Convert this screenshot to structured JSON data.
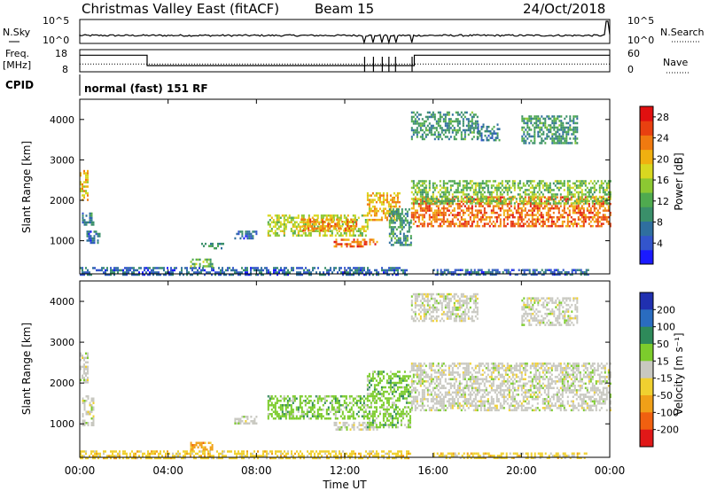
{
  "header": {
    "title": "Christmas Valley East (fitACF)",
    "beam": "Beam 15",
    "date": "24/Oct/2018"
  },
  "panels": {
    "nsky_label": "N.Sky",
    "nsearch_label": "N.Search",
    "freq_label_1": "Freq.",
    "freq_label_2": "[MHz]",
    "nave_label": "Nave",
    "cpid_label": "CPID",
    "cpid_text": "normal (fast) 151 RF",
    "nsky_ticks": [
      "10^5",
      "10^0"
    ],
    "nsearch_ticks": [
      "10^5",
      "10^0"
    ],
    "freq_ticks": [
      "18",
      "8"
    ],
    "nave_ticks": [
      "60",
      "0"
    ],
    "nsky_series_hint": "noise sky ~10^1.5, steps down at ~12:55, 13:20, 13:40, 14:20, 15:05; spike at 23:55",
    "freq_series": [
      {
        "t": 0.0,
        "freq": 15.5
      },
      {
        "t": 3.05,
        "freq": 15.5
      },
      {
        "t": 3.05,
        "freq": 10.8
      },
      {
        "t": 15.15,
        "freq": 10.8
      },
      {
        "t": 15.15,
        "freq": 15.5
      },
      {
        "t": 24.0,
        "freq": 15.5
      }
    ],
    "nave_level": 21
  },
  "chart_data": [
    {
      "type": "heatmap",
      "name": "power",
      "xlabel": "",
      "ylabel": "Slant Range [km]",
      "xlim": [
        0,
        24
      ],
      "ylim": [
        180,
        4500
      ],
      "yticks": [
        1000,
        2000,
        3000,
        4000
      ],
      "colorbar": {
        "label": "Power [dB]",
        "ticks": [
          "4",
          "8",
          "12",
          "16",
          "20",
          "24",
          "28"
        ],
        "range": [
          0,
          30
        ],
        "colors": [
          "#1a1aff",
          "#3355cc",
          "#2f6f9f",
          "#3a8f6a",
          "#4faa4f",
          "#8cc832",
          "#d8d820",
          "#f0b010",
          "#f07a10",
          "#e84010",
          "#e01010"
        ]
      },
      "regions": [
        {
          "t0": 0.0,
          "t1": 0.35,
          "r0": 2000,
          "r1": 2750,
          "level": 20
        },
        {
          "t0": 0.1,
          "t1": 0.6,
          "r0": 1400,
          "r1": 1700,
          "level": 8
        },
        {
          "t0": 0.3,
          "t1": 0.9,
          "r0": 950,
          "r1": 1250,
          "level": 6
        },
        {
          "t0": 0.0,
          "t1": 14.8,
          "r0": 180,
          "r1": 350,
          "level": 6
        },
        {
          "t0": 5.0,
          "t1": 6.0,
          "r0": 350,
          "r1": 560,
          "level": 14
        },
        {
          "t0": 5.5,
          "t1": 6.5,
          "r0": 800,
          "r1": 950,
          "level": 10
        },
        {
          "t0": 7.0,
          "t1": 8.0,
          "r0": 1050,
          "r1": 1250,
          "level": 6
        },
        {
          "t0": 8.5,
          "t1": 13.0,
          "r0": 1150,
          "r1": 1650,
          "level": 16
        },
        {
          "t0": 10.0,
          "t1": 12.5,
          "r0": 1250,
          "r1": 1550,
          "level": 22
        },
        {
          "t0": 11.5,
          "t1": 13.5,
          "r0": 850,
          "r1": 1050,
          "level": 24
        },
        {
          "t0": 13.0,
          "t1": 14.5,
          "r0": 1500,
          "r1": 2200,
          "level": 20
        },
        {
          "t0": 14.0,
          "t1": 15.0,
          "r0": 900,
          "r1": 1800,
          "level": 10
        },
        {
          "t0": 15.0,
          "t1": 24.0,
          "r0": 1350,
          "r1": 2100,
          "level": 24
        },
        {
          "t0": 15.0,
          "t1": 24.0,
          "r0": 1900,
          "r1": 2500,
          "level": 14
        },
        {
          "t0": 16.0,
          "t1": 23.0,
          "r0": 180,
          "r1": 300,
          "level": 6
        },
        {
          "t0": 15.0,
          "t1": 18.0,
          "r0": 3500,
          "r1": 4200,
          "level": 10
        },
        {
          "t0": 20.0,
          "t1": 22.5,
          "r0": 3400,
          "r1": 4100,
          "level": 10
        },
        {
          "t0": 18.0,
          "t1": 19.0,
          "r0": 3500,
          "r1": 3900,
          "level": 8
        }
      ]
    },
    {
      "type": "heatmap",
      "name": "velocity",
      "xlabel": "Time UT",
      "ylabel": "Slant Range [km]",
      "xlim": [
        0,
        24
      ],
      "ylim": [
        180,
        4500
      ],
      "xticks": [
        "00:00",
        "04:00",
        "08:00",
        "12:00",
        "16:00",
        "20:00",
        "00:00"
      ],
      "yticks": [
        1000,
        2000,
        3000,
        4000
      ],
      "colorbar": {
        "label": "Velocity [m s⁻¹]",
        "ticks": [
          "200",
          "100",
          "50",
          "15",
          "-15",
          "-50",
          "-100",
          "-200"
        ],
        "colors": [
          "#2030b0",
          "#2a6cc0",
          "#2e8a5a",
          "#7ccc2c",
          "#c8c8c0",
          "#f0d030",
          "#f0a018",
          "#f06010",
          "#e01818"
        ]
      },
      "regions": [
        {
          "t0": 0.0,
          "t1": 0.35,
          "r0": 2000,
          "r1": 2750,
          "cat": 4
        },
        {
          "t0": 0.1,
          "t1": 0.6,
          "r0": 950,
          "r1": 1700,
          "cat": 4
        },
        {
          "t0": 0.0,
          "t1": 15.0,
          "r0": 180,
          "r1": 350,
          "cat": 5
        },
        {
          "t0": 5.0,
          "t1": 6.0,
          "r0": 350,
          "r1": 560,
          "cat": 6
        },
        {
          "t0": 7.0,
          "t1": 8.0,
          "r0": 1000,
          "r1": 1200,
          "cat": 4
        },
        {
          "t0": 8.5,
          "t1": 13.0,
          "r0": 1150,
          "r1": 1700,
          "cat": 3
        },
        {
          "t0": 11.5,
          "t1": 13.5,
          "r0": 850,
          "r1": 1050,
          "cat": 4
        },
        {
          "t0": 13.0,
          "t1": 15.0,
          "r0": 900,
          "r1": 2300,
          "cat": 3
        },
        {
          "t0": 15.0,
          "t1": 24.0,
          "r0": 1350,
          "r1": 2500,
          "cat": 4
        },
        {
          "t0": 16.0,
          "t1": 23.0,
          "r0": 180,
          "r1": 300,
          "cat": 5
        },
        {
          "t0": 15.0,
          "t1": 18.0,
          "r0": 3500,
          "r1": 4200,
          "cat": 4
        },
        {
          "t0": 20.0,
          "t1": 22.5,
          "r0": 3400,
          "r1": 4100,
          "cat": 4
        }
      ]
    }
  ]
}
